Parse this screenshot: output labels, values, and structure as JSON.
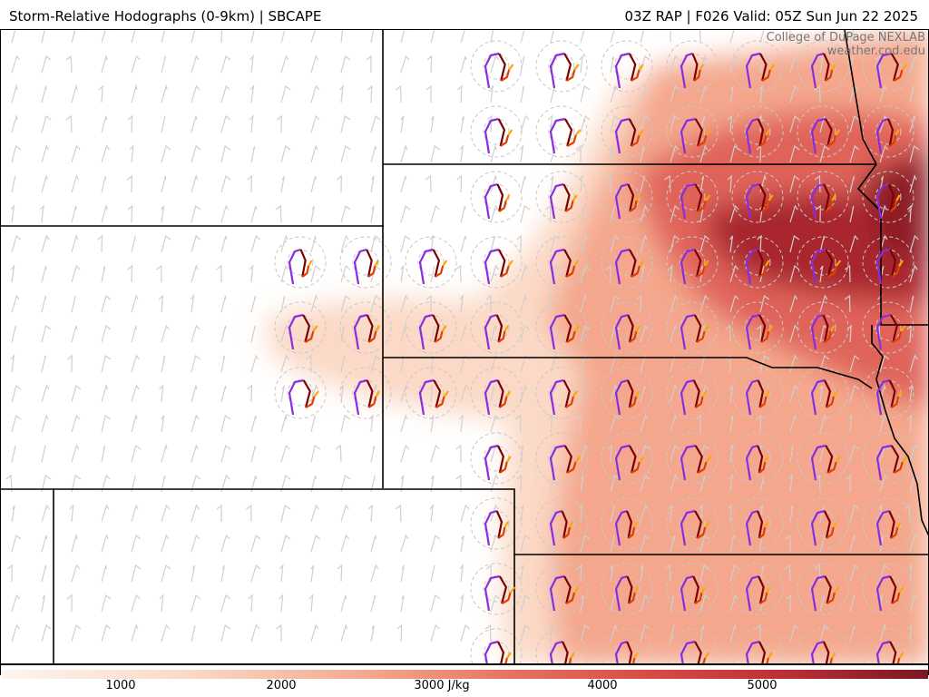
{
  "header": {
    "left_title": "Storm-Relative Hodographs (0-9km) | SBCAPE",
    "right_title": "03Z RAP | F026 Valid: 05Z Sun Jun 22 2025"
  },
  "credit": {
    "line1": "College of DuPage NEXLAB",
    "line2": "weather.cod.edu"
  },
  "colorbar": {
    "labels": [
      "1000",
      "2000",
      "3000 J/kg",
      "4000",
      "5000"
    ],
    "colors": [
      "#fdf1ea",
      "#fbd9c6",
      "#f8bba3",
      "#f29a80",
      "#e77260",
      "#d84b45",
      "#bb2f34",
      "#8e1c27"
    ]
  },
  "map_style": {
    "cape_high": "#8e1c27",
    "cape_mid": "#e77260",
    "cape_low": "#fbd9c6",
    "hodo_colors": [
      "#7b0000",
      "#e04000",
      "#ffa500",
      "#8a2be2"
    ]
  }
}
